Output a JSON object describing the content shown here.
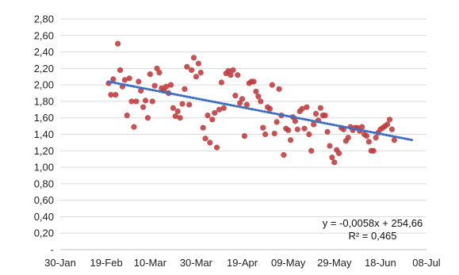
{
  "chart_data": {
    "type": "scatter",
    "title": "",
    "xlabel": "",
    "ylabel": "",
    "xlim": [
      "2021-01-30",
      "2021-07-08"
    ],
    "ylim": [
      0,
      2.8
    ],
    "yticks": [
      0,
      0.2,
      0.4,
      0.6,
      0.8,
      1.0,
      1.2,
      1.4,
      1.6,
      1.8,
      2.0,
      2.2,
      2.4,
      2.6,
      2.8
    ],
    "ytick_labels": [
      "-",
      "0,20",
      "0,40",
      "0,60",
      "0,80",
      "1,00",
      "1,20",
      "1,40",
      "1,60",
      "1,80",
      "2,00",
      "2,20",
      "2,40",
      "2,60",
      "2,80"
    ],
    "xticks": [
      "2021-01-30",
      "2021-02-19",
      "2021-03-10",
      "2021-03-30",
      "2021-04-19",
      "2021-05-09",
      "2021-05-29",
      "2021-06-18",
      "2021-07-08"
    ],
    "xtick_labels": [
      "30-Jan",
      "19-Feb",
      "10-Mar",
      "30-Mar",
      "19-Apr",
      "09-May",
      "29-May",
      "18-Jun",
      "08-Jul"
    ],
    "grid": {
      "horizontal": true,
      "vertical": false
    },
    "legend": "none",
    "marker_color": "#c0393b",
    "trendline_color": "#3a6fc4",
    "trendline": {
      "type": "linear",
      "style": "dotted",
      "from": {
        "x": "2021-02-20",
        "y": 2.04
      },
      "to": {
        "x": "2021-07-02",
        "y": 1.33
      }
    },
    "annotations": [
      "y = -0,0058x + 254,66",
      "R² = 0,465"
    ],
    "series": [
      {
        "points": [
          {
            "x": "2021-02-20",
            "y": 2.02
          },
          {
            "x": "2021-02-21",
            "y": 1.88
          },
          {
            "x": "2021-02-22",
            "y": 2.07
          },
          {
            "x": "2021-02-23",
            "y": 1.88
          },
          {
            "x": "2021-02-24",
            "y": 2.5
          },
          {
            "x": "2021-02-25",
            "y": 2.18
          },
          {
            "x": "2021-02-26",
            "y": 1.98
          },
          {
            "x": "2021-02-27",
            "y": 2.06
          },
          {
            "x": "2021-02-28",
            "y": 1.63
          },
          {
            "x": "2021-03-01",
            "y": 2.08
          },
          {
            "x": "2021-03-02",
            "y": 1.8
          },
          {
            "x": "2021-03-03",
            "y": 1.49
          },
          {
            "x": "2021-03-04",
            "y": 1.8
          },
          {
            "x": "2021-03-05",
            "y": 2.04
          },
          {
            "x": "2021-03-06",
            "y": 1.93
          },
          {
            "x": "2021-03-07",
            "y": 1.73
          },
          {
            "x": "2021-03-08",
            "y": 1.81
          },
          {
            "x": "2021-03-09",
            "y": 1.6
          },
          {
            "x": "2021-03-10",
            "y": 2.13
          },
          {
            "x": "2021-03-11",
            "y": 1.8
          },
          {
            "x": "2021-03-12",
            "y": 1.99
          },
          {
            "x": "2021-03-13",
            "y": 2.2
          },
          {
            "x": "2021-03-14",
            "y": 2.15
          },
          {
            "x": "2021-03-15",
            "y": 1.96
          },
          {
            "x": "2021-03-16",
            "y": 1.93
          },
          {
            "x": "2021-03-17",
            "y": 1.98
          },
          {
            "x": "2021-03-18",
            "y": 1.9
          },
          {
            "x": "2021-03-19",
            "y": 2.0
          },
          {
            "x": "2021-03-20",
            "y": 1.72
          },
          {
            "x": "2021-03-21",
            "y": 1.62
          },
          {
            "x": "2021-03-22",
            "y": 1.68
          },
          {
            "x": "2021-03-23",
            "y": 1.6
          },
          {
            "x": "2021-03-24",
            "y": 1.77
          },
          {
            "x": "2021-03-25",
            "y": 1.95
          },
          {
            "x": "2021-03-26",
            "y": 2.22
          },
          {
            "x": "2021-03-27",
            "y": 1.76
          },
          {
            "x": "2021-03-28",
            "y": 2.18
          },
          {
            "x": "2021-03-29",
            "y": 2.33
          },
          {
            "x": "2021-03-30",
            "y": 2.1
          },
          {
            "x": "2021-03-31",
            "y": 2.26
          },
          {
            "x": "2021-04-01",
            "y": 2.15
          },
          {
            "x": "2021-04-02",
            "y": 1.48
          },
          {
            "x": "2021-04-03",
            "y": 1.35
          },
          {
            "x": "2021-04-04",
            "y": 1.63
          },
          {
            "x": "2021-04-05",
            "y": 1.3
          },
          {
            "x": "2021-04-06",
            "y": 1.58
          },
          {
            "x": "2021-04-07",
            "y": 1.66
          },
          {
            "x": "2021-04-08",
            "y": 1.24
          },
          {
            "x": "2021-04-09",
            "y": 1.7
          },
          {
            "x": "2021-04-10",
            "y": 2.03
          },
          {
            "x": "2021-04-11",
            "y": 1.72
          },
          {
            "x": "2021-04-12",
            "y": 2.14
          },
          {
            "x": "2021-04-13",
            "y": 2.17
          },
          {
            "x": "2021-04-14",
            "y": 2.12
          },
          {
            "x": "2021-04-15",
            "y": 2.18
          },
          {
            "x": "2021-04-16",
            "y": 1.87
          },
          {
            "x": "2021-04-17",
            "y": 2.12
          },
          {
            "x": "2021-04-18",
            "y": 1.78
          },
          {
            "x": "2021-04-19",
            "y": 1.83
          },
          {
            "x": "2021-04-20",
            "y": 1.38
          },
          {
            "x": "2021-04-21",
            "y": 1.76
          },
          {
            "x": "2021-04-22",
            "y": 2.02
          },
          {
            "x": "2021-04-23",
            "y": 2.04
          },
          {
            "x": "2021-04-24",
            "y": 2.04
          },
          {
            "x": "2021-04-25",
            "y": 1.92
          },
          {
            "x": "2021-04-26",
            "y": 1.86
          },
          {
            "x": "2021-04-27",
            "y": 1.8
          },
          {
            "x": "2021-04-28",
            "y": 1.48
          },
          {
            "x": "2021-04-29",
            "y": 1.4
          },
          {
            "x": "2021-04-30",
            "y": 1.73
          },
          {
            "x": "2021-05-01",
            "y": 1.71
          },
          {
            "x": "2021-05-02",
            "y": 2.0
          },
          {
            "x": "2021-05-03",
            "y": 1.41
          },
          {
            "x": "2021-05-04",
            "y": 1.55
          },
          {
            "x": "2021-05-05",
            "y": 1.95
          },
          {
            "x": "2021-05-06",
            "y": 1.63
          },
          {
            "x": "2021-05-07",
            "y": 1.15
          },
          {
            "x": "2021-05-08",
            "y": 1.47
          },
          {
            "x": "2021-05-09",
            "y": 1.45
          },
          {
            "x": "2021-05-10",
            "y": 1.33
          },
          {
            "x": "2021-05-11",
            "y": 1.61
          },
          {
            "x": "2021-05-12",
            "y": 1.56
          },
          {
            "x": "2021-05-13",
            "y": 1.46
          },
          {
            "x": "2021-05-14",
            "y": 1.68
          },
          {
            "x": "2021-05-15",
            "y": 1.71
          },
          {
            "x": "2021-05-16",
            "y": 1.47
          },
          {
            "x": "2021-05-17",
            "y": 1.73
          },
          {
            "x": "2021-05-18",
            "y": 1.4
          },
          {
            "x": "2021-05-19",
            "y": 1.2
          },
          {
            "x": "2021-05-20",
            "y": 1.52
          },
          {
            "x": "2021-05-21",
            "y": 1.65
          },
          {
            "x": "2021-05-22",
            "y": 1.57
          },
          {
            "x": "2021-05-23",
            "y": 1.72
          },
          {
            "x": "2021-05-24",
            "y": 1.63
          },
          {
            "x": "2021-05-25",
            "y": 1.63
          },
          {
            "x": "2021-05-26",
            "y": 1.43
          },
          {
            "x": "2021-05-27",
            "y": 1.26
          },
          {
            "x": "2021-05-28",
            "y": 1.12
          },
          {
            "x": "2021-05-29",
            "y": 1.06
          },
          {
            "x": "2021-05-30",
            "y": 1.21
          },
          {
            "x": "2021-05-31",
            "y": 1.17
          },
          {
            "x": "2021-06-01",
            "y": 1.48
          },
          {
            "x": "2021-06-02",
            "y": 1.46
          },
          {
            "x": "2021-06-03",
            "y": 1.32
          },
          {
            "x": "2021-06-04",
            "y": 1.36
          },
          {
            "x": "2021-06-05",
            "y": 1.49
          },
          {
            "x": "2021-06-06",
            "y": 1.45
          },
          {
            "x": "2021-06-07",
            "y": 1.48
          },
          {
            "x": "2021-06-08",
            "y": 1.48
          },
          {
            "x": "2021-06-09",
            "y": 1.44
          },
          {
            "x": "2021-06-10",
            "y": 1.49
          },
          {
            "x": "2021-06-11",
            "y": 1.4
          },
          {
            "x": "2021-06-12",
            "y": 1.38
          },
          {
            "x": "2021-06-13",
            "y": 1.31
          },
          {
            "x": "2021-06-14",
            "y": 1.2
          },
          {
            "x": "2021-06-15",
            "y": 1.2
          },
          {
            "x": "2021-06-16",
            "y": 1.36
          },
          {
            "x": "2021-06-17",
            "y": 1.42
          },
          {
            "x": "2021-06-18",
            "y": 1.46
          },
          {
            "x": "2021-06-19",
            "y": 1.48
          },
          {
            "x": "2021-06-20",
            "y": 1.5
          },
          {
            "x": "2021-06-21",
            "y": 1.52
          },
          {
            "x": "2021-06-22",
            "y": 1.58
          },
          {
            "x": "2021-06-23",
            "y": 1.46
          },
          {
            "x": "2021-06-24",
            "y": 1.33
          }
        ]
      }
    ]
  }
}
